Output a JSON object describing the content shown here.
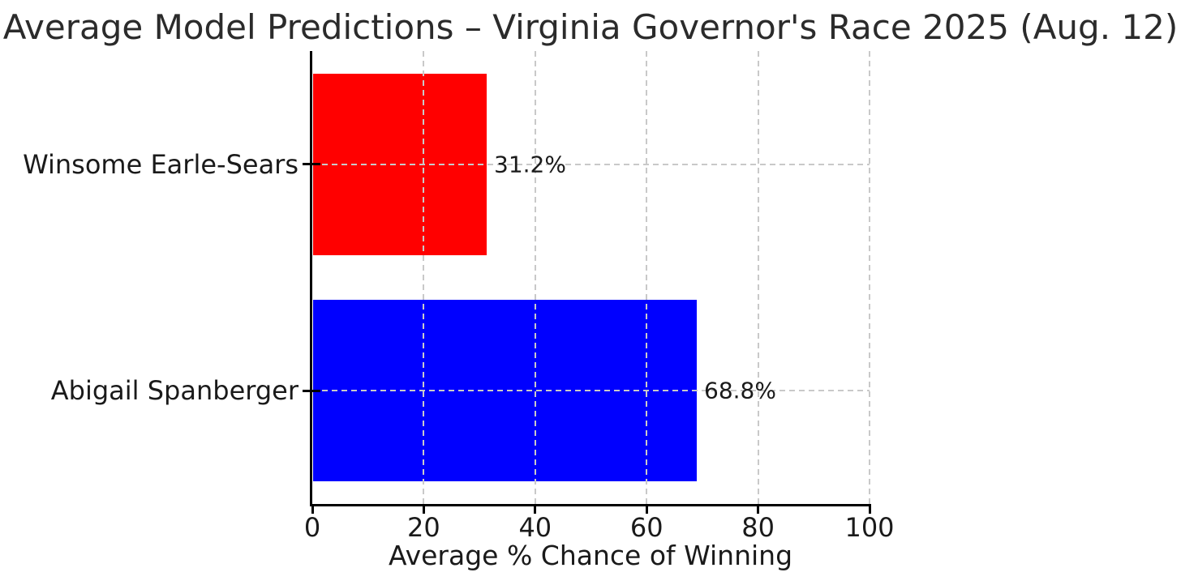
{
  "title": "Average Model Predictions – Virginia Governor's Race 2025 (Aug. 12)",
  "chart_data": {
    "type": "bar",
    "orientation": "horizontal",
    "title": "Average Model Predictions – Virginia Governor's Race 2025 (Aug. 12)",
    "categories": [
      "Winsome Earle-Sears",
      "Abigail Spanberger"
    ],
    "values": [
      31.2,
      68.8
    ],
    "bar_labels": [
      "31.2%",
      "68.8%"
    ],
    "bar_colors": [
      "#ff0000",
      "#0000ff"
    ],
    "xlabel": "Average % Chance of Winning",
    "ylabel": "",
    "x_ticks": [
      0,
      20,
      40,
      60,
      80,
      100
    ],
    "xlim": [
      0,
      100
    ],
    "bar_thickness_fraction": 0.8,
    "grid": "dashed",
    "grid_color": "#c9c9c9",
    "axis_color": "#000000",
    "text_color": "#1a1a1a",
    "background": "#ffffff",
    "legend": "none"
  }
}
